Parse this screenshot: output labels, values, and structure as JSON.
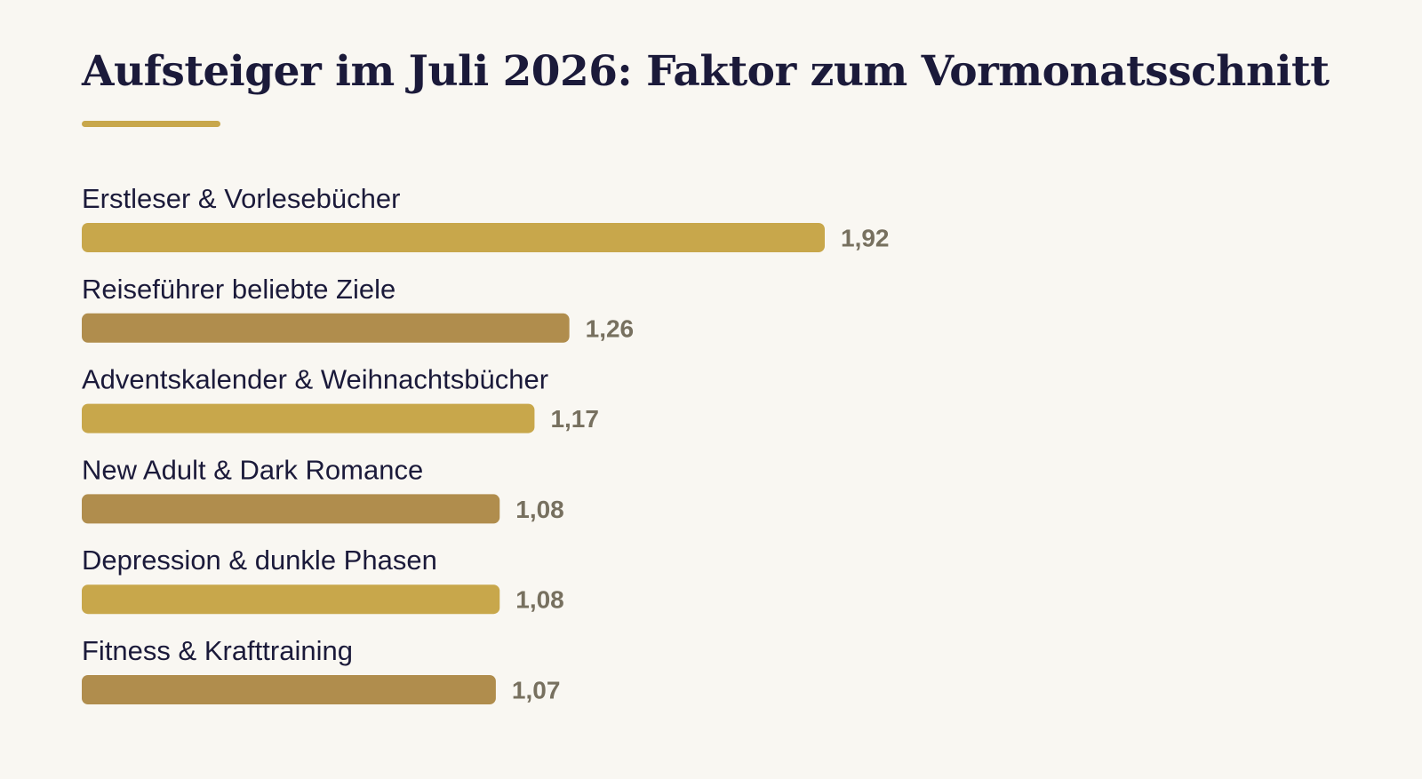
{
  "chart_data": {
    "type": "bar",
    "orientation": "horizontal",
    "title": "Aufsteiger im Juli 2026: Faktor zum Vormonatsschnitt",
    "categories": [
      "Erstleser & Vorlesebücher",
      "Reiseführer beliebte Ziele",
      "Adventskalender & Weihnachtsbücher",
      "New Adult & Dark Romance",
      "Depression & dunkle Phasen",
      "Fitness & Krafttraining"
    ],
    "values": [
      1.92,
      1.26,
      1.17,
      1.08,
      1.08,
      1.07
    ],
    "value_labels": [
      "1,92",
      "1,26",
      "1,17",
      "1,08",
      "1,08",
      "1,07"
    ],
    "xlim": [
      0,
      1.92
    ],
    "grid": false,
    "legend": "none",
    "colors": {
      "accent": "#c8a74b",
      "bar_alt": "#b08d4d",
      "title": "#1b1a3a",
      "value_text": "#77705f",
      "background": "#f9f7f2"
    }
  }
}
